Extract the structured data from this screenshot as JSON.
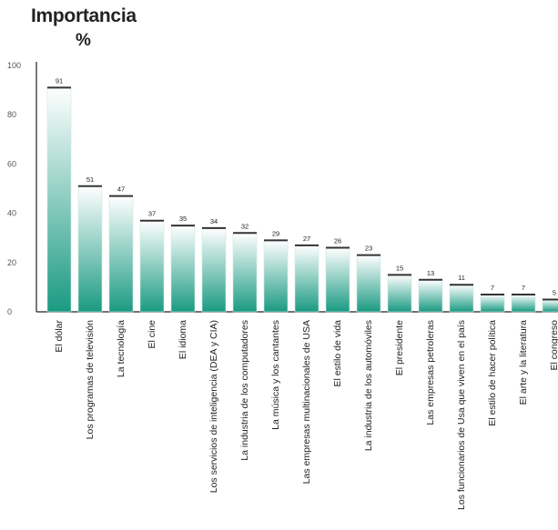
{
  "title": "Importancia",
  "unit": "%",
  "chart_data": {
    "type": "bar",
    "title": "Importancia",
    "ylabel": "%",
    "xlabel": "",
    "ylim": [
      0,
      100
    ],
    "yticks": [
      0,
      20,
      40,
      60,
      80,
      100
    ],
    "grid": false,
    "legend": "none",
    "bar_color_top": "#ffffff",
    "bar_color_bottom": "#1a9a82",
    "categories": [
      "El dólar",
      "Los programas de televisión",
      "La tecnología",
      "El cine",
      "El idioma",
      "Los servicios de inteligencia (DEA y CIA)",
      "La industria de los computadores",
      "La música y los cantantes",
      "Las empresas multinacionales de USA",
      "El estilo de vida",
      "La industria de los automóviles",
      "El presidente",
      "Las empresas petroleras",
      "Los funcionarios de Usa que viven en el país",
      "El estilo de hacer política",
      "El arte y la literatura",
      "El congreso"
    ],
    "values": [
      91,
      51,
      47,
      37,
      35,
      34,
      32,
      29,
      27,
      26,
      23,
      15,
      13,
      11,
      7,
      7,
      5
    ]
  }
}
